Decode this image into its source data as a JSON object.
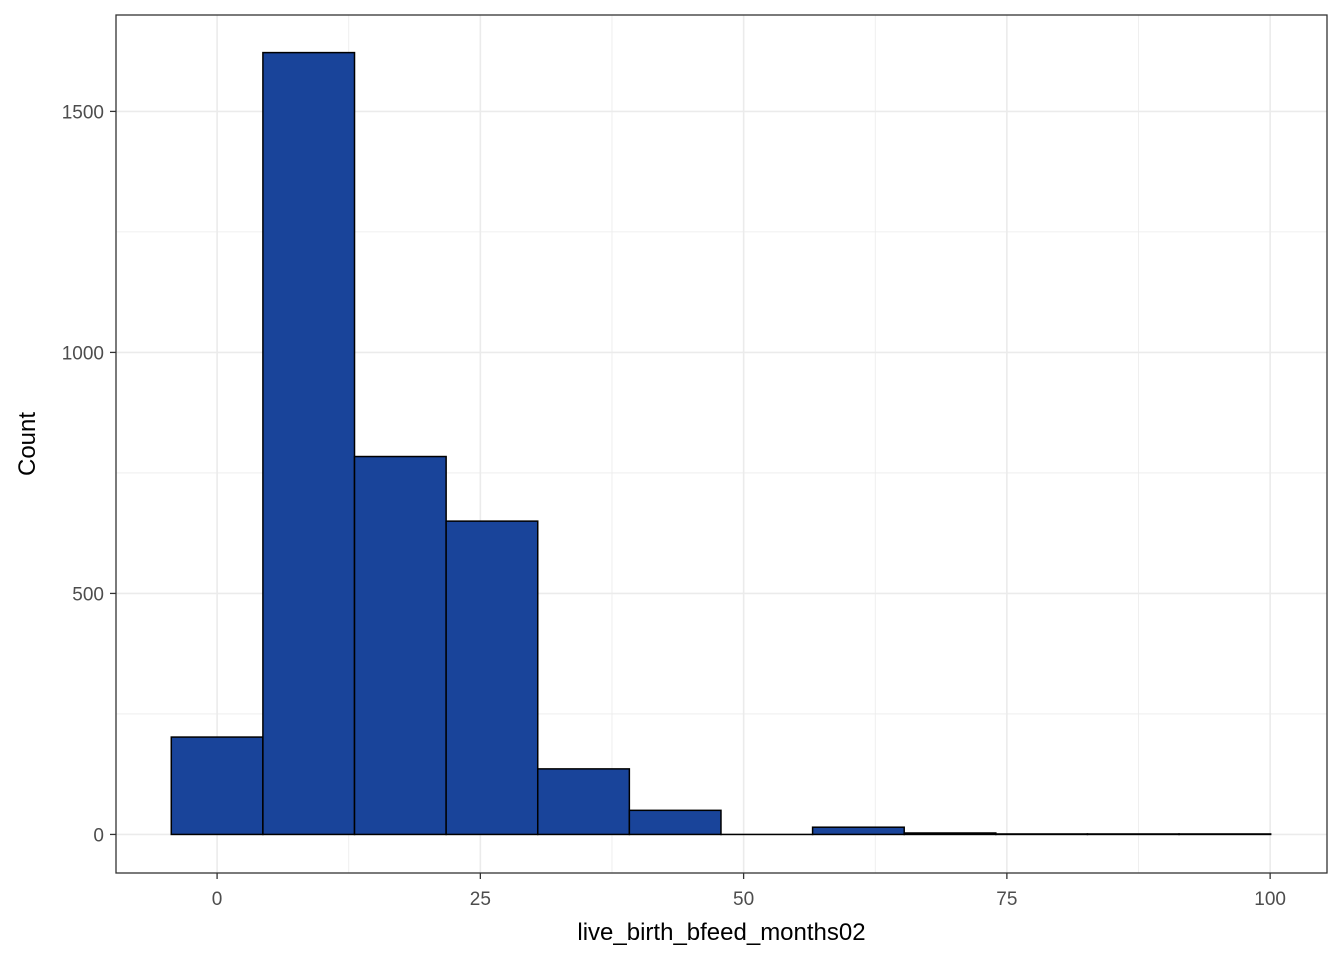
{
  "chart_data": {
    "type": "bar",
    "subtype": "histogram",
    "xlabel": "live_birth_bfeed_months02",
    "ylabel": "Count",
    "xlim": [
      -9.6,
      105.4
    ],
    "ylim": [
      -80,
      1700
    ],
    "x_ticks": [
      0,
      25,
      50,
      75,
      100
    ],
    "y_ticks": [
      0,
      500,
      1000,
      1500
    ],
    "bin_width": 8.7,
    "bins": [
      {
        "x0": -4.35,
        "x1": 4.35,
        "count": 202
      },
      {
        "x0": 4.35,
        "x1": 13.05,
        "count": 1622
      },
      {
        "x0": 13.05,
        "x1": 21.75,
        "count": 784
      },
      {
        "x0": 21.75,
        "x1": 30.45,
        "count": 650
      },
      {
        "x0": 30.45,
        "x1": 39.15,
        "count": 136
      },
      {
        "x0": 39.15,
        "x1": 47.85,
        "count": 50
      },
      {
        "x0": 47.85,
        "x1": 56.55,
        "count": 0
      },
      {
        "x0": 56.55,
        "x1": 65.25,
        "count": 15
      },
      {
        "x0": 65.25,
        "x1": 73.95,
        "count": 3
      },
      {
        "x0": 73.95,
        "x1": 82.65,
        "count": 1
      },
      {
        "x0": 82.65,
        "x1": 91.35,
        "count": 1
      },
      {
        "x0": 91.35,
        "x1": 100.05,
        "count": 1
      }
    ],
    "fill_color": "#19449a",
    "bar_outline_color": "#000000",
    "grid": true,
    "grid_color": "#ebebeb",
    "panel_border_color": "#333333",
    "legend": "none"
  }
}
